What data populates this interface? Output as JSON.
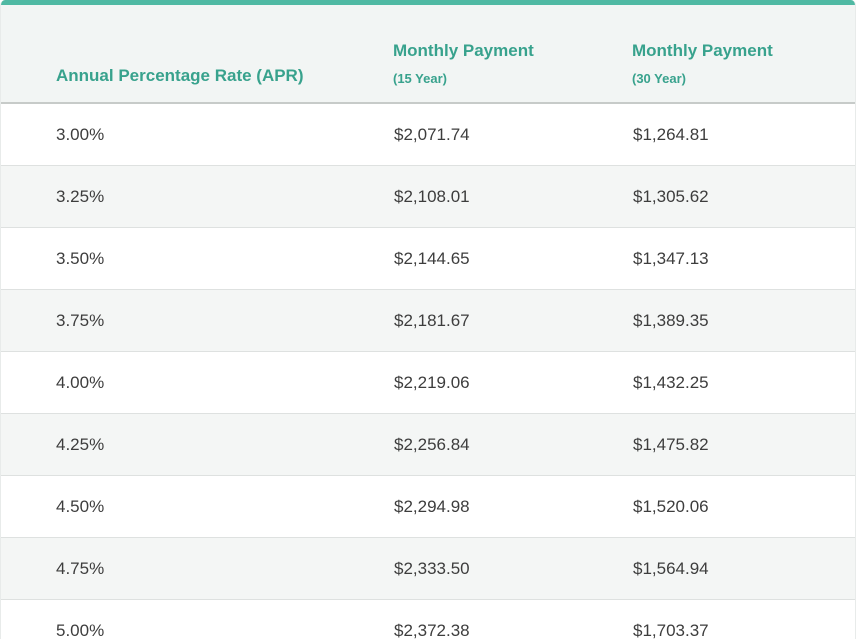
{
  "colors": {
    "accent_bar": "#4FB9A3",
    "header_text": "#38A28D",
    "header_background": "#F2F5F4",
    "alt_row_background": "#F4F6F5",
    "row_divider": "#DEE1E0",
    "body_text": "#3D3D3D"
  },
  "chart_data": {
    "type": "table",
    "columns": [
      {
        "label": "Annual Percentage Rate (APR)",
        "sublabel": ""
      },
      {
        "label": "Monthly Payment",
        "sublabel": "(15 Year)"
      },
      {
        "label": "Monthly Payment",
        "sublabel": "(30 Year)"
      }
    ],
    "rows": [
      {
        "apr": "3.00%",
        "payment_15_year": "$2,071.74",
        "payment_30_year": "$1,264.81"
      },
      {
        "apr": "3.25%",
        "payment_15_year": "$2,108.01",
        "payment_30_year": "$1,305.62"
      },
      {
        "apr": "3.50%",
        "payment_15_year": "$2,144.65",
        "payment_30_year": "$1,347.13"
      },
      {
        "apr": "3.75%",
        "payment_15_year": "$2,181.67",
        "payment_30_year": "$1,389.35"
      },
      {
        "apr": "4.00%",
        "payment_15_year": "$2,219.06",
        "payment_30_year": "$1,432.25"
      },
      {
        "apr": "4.25%",
        "payment_15_year": "$2,256.84",
        "payment_30_year": "$1,475.82"
      },
      {
        "apr": "4.50%",
        "payment_15_year": "$2,294.98",
        "payment_30_year": "$1,520.06"
      },
      {
        "apr": "4.75%",
        "payment_15_year": "$2,333.50",
        "payment_30_year": "$1,564.94"
      },
      {
        "apr": "5.00%",
        "payment_15_year": "$2,372.38",
        "payment_30_year": "$1,703.37"
      }
    ]
  }
}
